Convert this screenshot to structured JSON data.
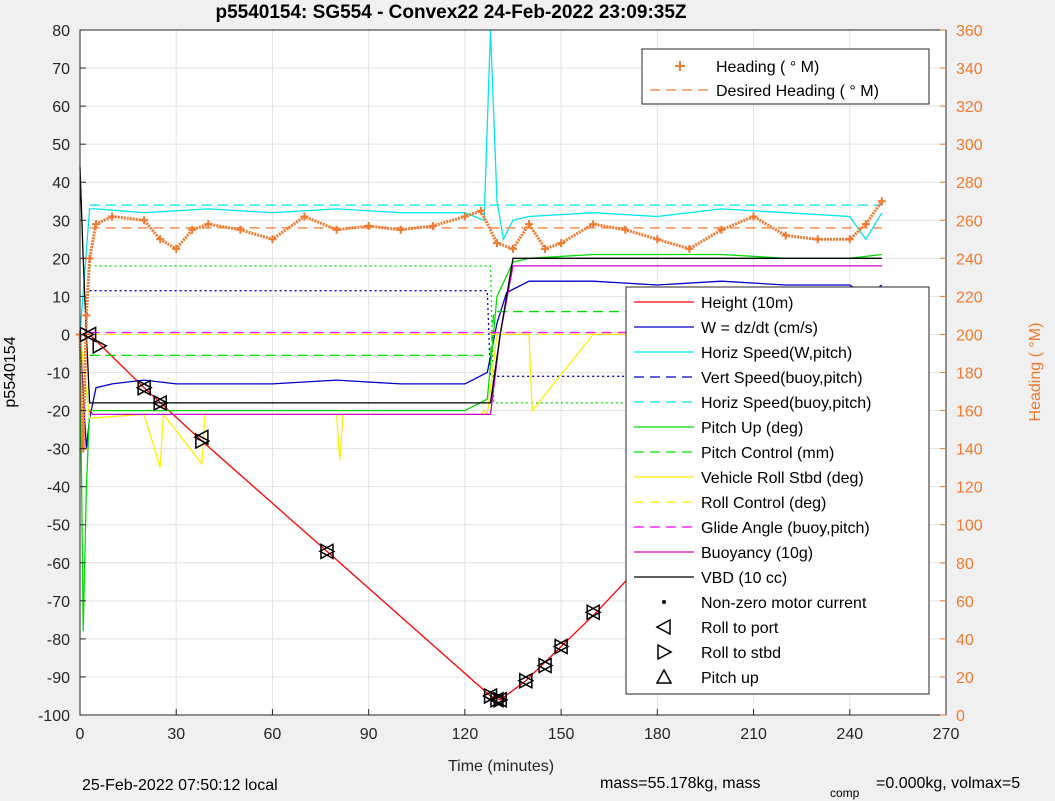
{
  "chart_data": {
    "type": "line",
    "title": "p5540154: SG554 - Convex22 24-Feb-2022 23:09:35Z",
    "xlabel": "Time (minutes)",
    "ylabel": "p5540154",
    "y2label": "Heading (  °M)",
    "xlim": [
      0,
      270
    ],
    "ylim": [
      -100,
      80
    ],
    "y2lim": [
      0,
      360
    ],
    "x_ticks": [
      0,
      30,
      60,
      90,
      120,
      150,
      180,
      210,
      240,
      270
    ],
    "y_ticks": [
      -100,
      -90,
      -80,
      -70,
      -60,
      -50,
      -40,
      -30,
      -20,
      -10,
      0,
      10,
      20,
      30,
      40,
      50,
      60,
      70,
      80
    ],
    "y2_ticks": [
      0,
      20,
      40,
      60,
      80,
      100,
      120,
      140,
      160,
      180,
      200,
      220,
      240,
      260,
      280,
      300,
      320,
      340,
      360
    ],
    "grid": true,
    "footer_left": "25-Feb-2022 07:50:12 local",
    "footer_right_pre": "mass=55.178kg, mass",
    "footer_right_sub": "comp",
    "footer_right_post": "=0.000kg, volmax=5",
    "legend_heading": [
      {
        "label": "Heading (  ° M)",
        "color": "#f07a30",
        "style": "plus"
      },
      {
        "label": "Desired Heading (    ° M)",
        "color": "#f07a30",
        "style": "dashed"
      }
    ],
    "legend_main": [
      {
        "label": "Height (10m)",
        "color": "#ff0000",
        "style": "solid"
      },
      {
        "label": "W = dz/dt (cm/s)",
        "color": "#0000cc",
        "style": "solid"
      },
      {
        "label": "Horiz Speed(W,pitch)",
        "color": "#00e5ee",
        "style": "solid"
      },
      {
        "label": "Vert Speed(buoy,pitch)",
        "color": "#0000cc",
        "style": "dashed"
      },
      {
        "label": "Horiz Speed(buoy,pitch)",
        "color": "#00e5ee",
        "style": "dashed"
      },
      {
        "label": "Pitch Up (deg)",
        "color": "#00dd00",
        "style": "solid"
      },
      {
        "label": "Pitch Control (mm)",
        "color": "#00dd00",
        "style": "dashed"
      },
      {
        "label": "Vehicle Roll Stbd (deg)",
        "color": "#ffee00",
        "style": "solid"
      },
      {
        "label": "Roll Control (deg)",
        "color": "#ffee00",
        "style": "dashed"
      },
      {
        "label": "Glide Angle (buoy,pitch)",
        "color": "#ff00ff",
        "style": "dashed"
      },
      {
        "label": "Buoyancy (10g)",
        "color": "#cc00cc",
        "style": "solid"
      },
      {
        "label": "VBD (10 cc)",
        "color": "#000000",
        "style": "solid"
      },
      {
        "label": "Non-zero motor current",
        "color": "#000000",
        "style": "dot"
      },
      {
        "label": "Roll to port",
        "color": "#000000",
        "style": "tri-left"
      },
      {
        "label": "Roll to stbd",
        "color": "#000000",
        "style": "tri-right"
      },
      {
        "label": "Pitch up",
        "color": "#000000",
        "style": "tri-up"
      }
    ],
    "series": [
      {
        "name": "Height (10m)",
        "color": "#ff0000",
        "axis": "left",
        "style": "solid",
        "x": [
          0,
          3,
          20,
          38,
          77,
          128,
          131,
          139,
          150,
          161,
          180,
          191,
          205,
          223,
          250
        ],
        "y": [
          0,
          0,
          -14,
          -28,
          -57,
          -95,
          -96,
          -91,
          -82,
          -73,
          -56,
          -47,
          -34,
          -21,
          0
        ]
      },
      {
        "name": "W = dz/dt (cm/s)",
        "color": "#0000cc",
        "axis": "left",
        "style": "solid",
        "x": [
          0,
          2,
          3,
          5,
          10,
          20,
          30,
          40,
          60,
          80,
          100,
          120,
          127,
          130,
          133,
          140,
          160,
          180,
          200,
          220,
          240,
          245,
          250
        ],
        "y": [
          0,
          -30,
          -22,
          -14,
          -13,
          -12,
          -13,
          -13,
          -13,
          -12,
          -13,
          -13,
          -10,
          3,
          11,
          14,
          14,
          13,
          14,
          13,
          13,
          10,
          13
        ]
      },
      {
        "name": "Horiz Speed(W,pitch)",
        "color": "#00e5ee",
        "axis": "left",
        "style": "solid",
        "x": [
          0,
          3,
          5,
          20,
          40,
          60,
          80,
          100,
          120,
          126,
          128,
          130,
          132,
          135,
          140,
          160,
          180,
          200,
          220,
          240,
          245,
          250
        ],
        "y": [
          0,
          33,
          33,
          32,
          33,
          32,
          33,
          32,
          32,
          30,
          80,
          35,
          25,
          30,
          31,
          32,
          31,
          33,
          32,
          31,
          25,
          32
        ]
      },
      {
        "name": "Vert Speed(buoy,pitch)",
        "color": "#0000cc",
        "axis": "left",
        "style": "dotted",
        "x": [
          3,
          127,
          128,
          250
        ],
        "y": [
          11.5,
          11.5,
          -11,
          -11
        ]
      },
      {
        "name": "Horiz Speed(buoy,pitch)",
        "color": "#00e5ee",
        "axis": "left",
        "style": "dashed",
        "x": [
          3,
          250
        ],
        "y": [
          34,
          34
        ]
      },
      {
        "name": "Pitch Up (deg)",
        "color": "#00dd00",
        "axis": "left",
        "style": "solid",
        "x": [
          0,
          1,
          2,
          3,
          5,
          20,
          40,
          60,
          80,
          100,
          120,
          127,
          130,
          135,
          140,
          160,
          180,
          200,
          220,
          240,
          250
        ],
        "y": [
          0,
          -78,
          -40,
          -20,
          -20,
          -20,
          -20,
          -20,
          -20,
          -20,
          -20,
          -17,
          10,
          19,
          20,
          21,
          21,
          21,
          20,
          20,
          21
        ]
      },
      {
        "name": "Pitch Control (mm)",
        "color": "#00dd00",
        "axis": "left",
        "style": "dashed",
        "x": [
          3,
          128,
          129,
          250
        ],
        "y": [
          -5.5,
          -5.5,
          6,
          6
        ]
      },
      {
        "name": "Pitch Control ref",
        "color": "#00dd00",
        "axis": "left",
        "style": "dotted",
        "x": [
          3,
          128,
          129,
          250
        ],
        "y": [
          18,
          18,
          -18,
          -18
        ]
      },
      {
        "name": "Vehicle Roll Stbd (deg)",
        "color": "#ffee00",
        "axis": "left",
        "style": "solid",
        "x": [
          0,
          3,
          20,
          25,
          26,
          38,
          39,
          40,
          80,
          81,
          82,
          120,
          125,
          126,
          127,
          130,
          140,
          141,
          160,
          180,
          181,
          205,
          250
        ],
        "y": [
          0,
          -22,
          -21,
          -35,
          -21,
          -34,
          -21,
          -21,
          -21,
          -33,
          -21,
          -21,
          -21,
          -20,
          -21,
          0,
          0,
          -20,
          0,
          0,
          -29,
          0,
          0
        ]
      },
      {
        "name": "Roll Control (deg)",
        "color": "#ffee00",
        "axis": "left",
        "style": "dashed",
        "x": [
          3,
          250
        ],
        "y": [
          0,
          0
        ]
      },
      {
        "name": "Glide Angle (buoy,pitch)",
        "color": "#ff00ff",
        "axis": "left",
        "style": "dashed",
        "x": [
          3,
          250
        ],
        "y": [
          0.5,
          0.5
        ]
      },
      {
        "name": "Buoyancy (10g)",
        "color": "#cc00cc",
        "axis": "left",
        "style": "solid",
        "x": [
          3,
          4,
          128,
          131,
          135,
          250
        ],
        "y": [
          -20,
          -21,
          -21,
          0,
          18,
          18
        ]
      },
      {
        "name": "VBD (10 cc)",
        "color": "#000000",
        "axis": "left",
        "style": "solid",
        "x": [
          0,
          1,
          2,
          3,
          4,
          128,
          131,
          135,
          250
        ],
        "y": [
          44,
          20,
          0,
          -18,
          -18,
          -18,
          0,
          20,
          20
        ]
      },
      {
        "name": "Heading (  ° M)",
        "color": "#f07a30",
        "axis": "right",
        "style": "plus",
        "x": [
          0,
          1,
          2,
          3,
          5,
          10,
          20,
          25,
          30,
          35,
          40,
          50,
          60,
          70,
          80,
          90,
          100,
          110,
          120,
          125,
          130,
          135,
          140,
          145,
          150,
          160,
          170,
          180,
          190,
          200,
          210,
          220,
          230,
          240,
          245,
          250
        ],
        "y": [
          200,
          140,
          210,
          240,
          258,
          262,
          260,
          250,
          245,
          255,
          258,
          255,
          250,
          262,
          255,
          257,
          255,
          257,
          262,
          265,
          248,
          245,
          258,
          245,
          248,
          258,
          255,
          250,
          245,
          255,
          262,
          252,
          250,
          250,
          258,
          270
        ]
      },
      {
        "name": "Desired Heading (    ° M)",
        "color": "#f07a30",
        "axis": "right",
        "style": "dashed",
        "x": [
          3,
          250
        ],
        "y": [
          256,
          256
        ]
      }
    ],
    "markers": [
      {
        "name": "Roll to port",
        "shape": "tri-left",
        "x": [
          3,
          20,
          25,
          38,
          77,
          128,
          130,
          131,
          139,
          145,
          150,
          160,
          180,
          191,
          205,
          223
        ],
        "y": [
          0,
          -14,
          -18,
          -27,
          -57,
          -95,
          -96,
          -96,
          -91,
          -87,
          -82,
          -73,
          -56,
          -47,
          -34,
          -21
        ]
      },
      {
        "name": "Roll to stbd",
        "shape": "tri-right",
        "x": [
          2,
          6,
          20,
          25,
          38,
          77,
          128,
          130,
          131,
          139,
          145,
          150,
          160,
          180,
          191,
          205,
          223
        ],
        "y": [
          0,
          -3,
          -14,
          -18,
          -28,
          -57,
          -95,
          -96,
          -96,
          -91,
          -87,
          -82,
          -73,
          -56,
          -47,
          -34,
          -21
        ]
      }
    ]
  }
}
